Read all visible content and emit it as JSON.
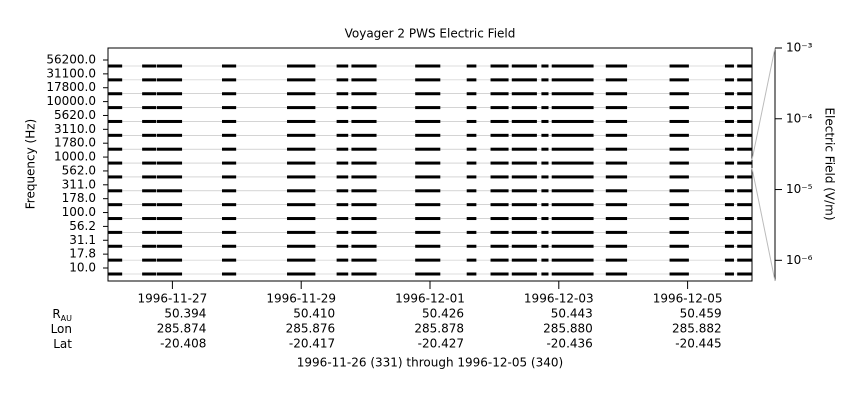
{
  "chart_data": {
    "type": "spectral-channels",
    "title": "Voyager 2 PWS Electric Field",
    "ylabel": "Frequency (Hz)",
    "y2label": "Electric Field (V/m)",
    "channels": [
      "56200.0",
      "31100.0",
      "17800.0",
      "10000.0",
      "5620.0",
      "3110.0",
      "1780.0",
      "1000.0",
      "562.0",
      "311.0",
      "178.0",
      "100.0",
      "56.2",
      "31.1",
      "17.8",
      "10.0"
    ],
    "xlim": [
      0,
      10
    ],
    "xticks": [
      {
        "value": 1,
        "label": "1996-11-27"
      },
      {
        "value": 3,
        "label": "1996-11-29"
      },
      {
        "value": 5,
        "label": "1996-12-01"
      },
      {
        "value": 7,
        "label": "1996-12-03"
      },
      {
        "value": 9,
        "label": "1996-12-05"
      }
    ],
    "segments": [
      [
        0,
        0.22
      ],
      [
        0.53,
        0.75
      ],
      [
        0.76,
        1.15
      ],
      [
        1.77,
        1.99
      ],
      [
        2.78,
        3.22
      ],
      [
        3.55,
        3.73
      ],
      [
        3.78,
        4.17
      ],
      [
        4.77,
        5.16
      ],
      [
        5.57,
        5.72
      ],
      [
        5.94,
        6.22
      ],
      [
        6.27,
        6.66
      ],
      [
        6.73,
        6.84
      ],
      [
        6.89,
        7.54
      ],
      [
        7.73,
        8.06
      ],
      [
        8.72,
        9.02
      ],
      [
        9.58,
        9.72
      ],
      [
        9.77,
        10.0
      ]
    ],
    "y2lim": [
      5.1e-07,
      0.001
    ],
    "y2log": true,
    "y2ticks": [
      {
        "value": 0.001,
        "label": "10⁻³"
      },
      {
        "value": 0.0001,
        "label": "10⁻⁴"
      },
      {
        "value": 1e-05,
        "label": "10⁻⁵"
      },
      {
        "value": 1e-06,
        "label": "10⁻⁶"
      }
    ],
    "ephemeris": [
      {
        "label": "R",
        "label_sub": "AU",
        "values": [
          "50.394",
          "50.410",
          "50.426",
          "50.443",
          "50.459"
        ]
      },
      {
        "label": "Lon",
        "values": [
          "285.874",
          "285.876",
          "285.878",
          "285.880",
          "285.882"
        ]
      },
      {
        "label": "Lat",
        "values": [
          "-20.408",
          "-20.417",
          "-20.427",
          "-20.436",
          "-20.445"
        ]
      }
    ],
    "footer": "1996-11-26 (331) through 1996-12-05 (340)"
  }
}
